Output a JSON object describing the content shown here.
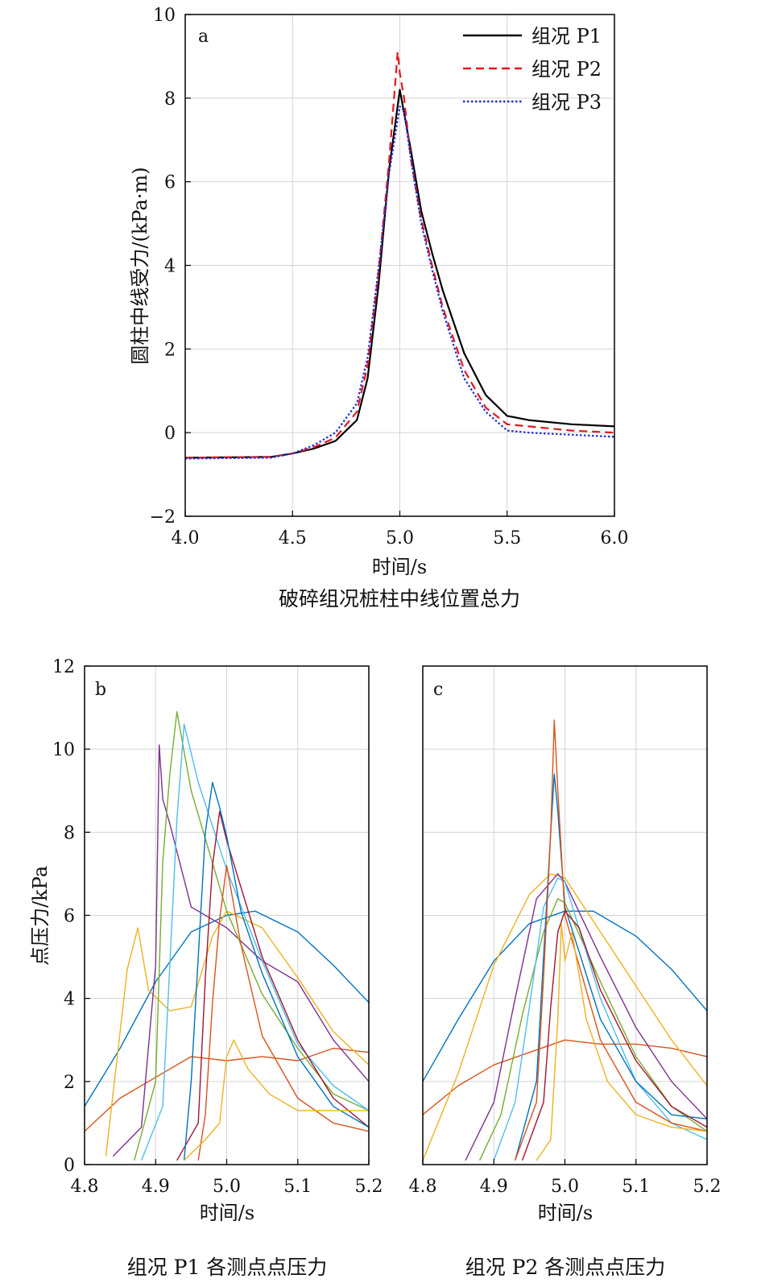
{
  "chart_data": [
    {
      "panel": "a",
      "type": "line",
      "caption": "破碎组况桩柱中线位置总力",
      "xlabel": "时间/s",
      "ylabel": "圆柱中线受力/(kPa·m)",
      "xlim": [
        4.0,
        6.0
      ],
      "ylim": [
        -2,
        10
      ],
      "xticks": [
        "4.0",
        "4.5",
        "5.0",
        "5.5",
        "6.0"
      ],
      "yticks": [
        "−2",
        "0",
        "2",
        "4",
        "6",
        "8",
        "10"
      ],
      "grid": true,
      "legend": "top-right",
      "series": [
        {
          "name": "组况 P1",
          "color": "#000000",
          "dash": "solid",
          "x": [
            4.0,
            4.4,
            4.5,
            4.6,
            4.7,
            4.8,
            4.85,
            4.9,
            4.95,
            5.0,
            5.05,
            5.1,
            5.15,
            5.2,
            5.3,
            5.4,
            5.5,
            5.6,
            5.8,
            6.0
          ],
          "y": [
            -0.6,
            -0.58,
            -0.5,
            -0.38,
            -0.2,
            0.3,
            1.3,
            3.5,
            6.3,
            8.2,
            6.8,
            5.3,
            4.3,
            3.4,
            1.9,
            0.9,
            0.4,
            0.3,
            0.2,
            0.15
          ]
        },
        {
          "name": "组况 P2",
          "color": "#e0191e",
          "dash": "dashed",
          "x": [
            4.0,
            4.4,
            4.5,
            4.6,
            4.7,
            4.8,
            4.85,
            4.9,
            4.95,
            4.99,
            5.0,
            5.02,
            5.05,
            5.1,
            5.15,
            5.2,
            5.3,
            5.4,
            5.5,
            5.6,
            5.8,
            6.0
          ],
          "y": [
            -0.6,
            -0.58,
            -0.5,
            -0.35,
            -0.12,
            0.5,
            1.6,
            3.8,
            6.5,
            9.1,
            8.6,
            8.0,
            6.6,
            5.1,
            4.0,
            3.0,
            1.5,
            0.6,
            0.2,
            0.15,
            0.05,
            0.0
          ]
        },
        {
          "name": "组况 P3",
          "color": "#1f2fd4",
          "dash": "dotted",
          "x": [
            4.0,
            4.4,
            4.5,
            4.6,
            4.7,
            4.8,
            4.85,
            4.9,
            4.95,
            5.0,
            5.02,
            5.05,
            5.1,
            5.15,
            5.2,
            5.3,
            5.4,
            5.5,
            5.6,
            5.8,
            6.0
          ],
          "y": [
            -0.62,
            -0.6,
            -0.5,
            -0.3,
            0.0,
            0.7,
            1.8,
            3.9,
            6.2,
            7.8,
            7.7,
            6.6,
            5.0,
            3.9,
            2.9,
            1.3,
            0.5,
            0.05,
            0.0,
            -0.05,
            -0.1
          ]
        }
      ]
    },
    {
      "panel": "b",
      "type": "line",
      "caption": "组况 P1 各测点点压力",
      "xlabel": "时间/s",
      "ylabel": "点压力/kPa",
      "xlim": [
        4.8,
        5.2
      ],
      "ylim": [
        0,
        12
      ],
      "xticks": [
        "4.8",
        "4.9",
        "5.0",
        "5.1",
        "5.2"
      ],
      "yticks": [
        "0",
        "2",
        "4",
        "6",
        "8",
        "10",
        "12"
      ],
      "grid": true,
      "series": [
        {
          "color": "#0072bd",
          "x": [
            4.8,
            4.85,
            4.9,
            4.95,
            5.0,
            5.04,
            5.1,
            5.15,
            5.2
          ],
          "y": [
            1.4,
            2.8,
            4.4,
            5.6,
            6.0,
            6.1,
            5.6,
            4.8,
            3.9
          ]
        },
        {
          "color": "#d95319",
          "x": [
            4.8,
            4.85,
            4.9,
            4.95,
            5.0,
            5.05,
            5.1,
            5.15,
            5.2
          ],
          "y": [
            0.8,
            1.6,
            2.1,
            2.6,
            2.5,
            2.6,
            2.5,
            2.8,
            2.7
          ]
        },
        {
          "color": "#edb120",
          "x": [
            4.83,
            4.86,
            4.875,
            4.89,
            4.92,
            4.95,
            4.98,
            5.0,
            5.05,
            5.1,
            5.15,
            5.2
          ],
          "y": [
            0.2,
            4.7,
            5.7,
            4.2,
            3.7,
            3.8,
            5.5,
            6.1,
            5.7,
            4.5,
            3.2,
            2.4
          ]
        },
        {
          "color": "#7e2f8e",
          "x": [
            4.84,
            4.88,
            4.9,
            4.905,
            4.91,
            4.92,
            4.95,
            5.0,
            5.05,
            5.1,
            5.15,
            5.2
          ],
          "y": [
            0.2,
            0.9,
            4.8,
            10.1,
            8.8,
            8.2,
            6.2,
            5.7,
            4.9,
            4.4,
            3.0,
            2.0
          ]
        },
        {
          "color": "#77ac30",
          "x": [
            4.87,
            4.9,
            4.91,
            4.92,
            4.93,
            4.95,
            5.0,
            5.05,
            5.1,
            5.15,
            5.2
          ],
          "y": [
            0.1,
            2.0,
            7.3,
            9.4,
            10.9,
            9.0,
            6.1,
            4.1,
            2.8,
            1.7,
            1.3
          ]
        },
        {
          "color": "#4dbeee",
          "x": [
            4.88,
            4.91,
            4.92,
            4.93,
            4.94,
            4.96,
            5.0,
            5.05,
            5.1,
            5.15,
            5.2
          ],
          "y": [
            0.1,
            1.4,
            4.8,
            8.3,
            10.6,
            9.2,
            7.1,
            4.9,
            2.9,
            1.9,
            1.3
          ]
        },
        {
          "color": "#a2142f",
          "x": [
            4.93,
            4.96,
            4.97,
            4.98,
            4.99,
            5.0,
            5.05,
            5.1,
            5.15,
            5.2
          ],
          "y": [
            0.1,
            1.0,
            4.5,
            7.2,
            8.5,
            7.8,
            5.0,
            3.0,
            1.6,
            0.9
          ]
        },
        {
          "color": "#0072bd",
          "x": [
            4.94,
            4.95,
            4.96,
            4.97,
            4.98,
            4.99,
            5.0,
            5.02,
            5.05,
            5.1,
            5.15,
            5.2
          ],
          "y": [
            0.1,
            2.0,
            5.0,
            8.0,
            9.2,
            8.6,
            7.9,
            6.1,
            4.6,
            2.6,
            1.4,
            0.9
          ]
        },
        {
          "color": "#d95319",
          "x": [
            4.96,
            4.97,
            4.98,
            4.99,
            5.0,
            5.02,
            5.05,
            5.1,
            5.15,
            5.2
          ],
          "y": [
            0.1,
            1.2,
            3.9,
            5.9,
            7.2,
            5.3,
            3.1,
            1.6,
            1.0,
            0.8
          ]
        },
        {
          "color": "#edb120",
          "x": [
            4.94,
            4.97,
            4.99,
            5.0,
            5.01,
            5.03,
            5.06,
            5.1,
            5.15,
            5.2
          ],
          "y": [
            0.1,
            0.6,
            1.0,
            2.6,
            3.0,
            2.3,
            1.7,
            1.3,
            1.3,
            1.3
          ]
        }
      ]
    },
    {
      "panel": "c",
      "type": "line",
      "caption": "组况 P2 各测点点压力",
      "xlabel": "时间/s",
      "xlim": [
        4.8,
        5.2
      ],
      "ylim": [
        0,
        12
      ],
      "xticks": [
        "4.8",
        "4.9",
        "5.0",
        "5.1",
        "5.2"
      ],
      "grid": true,
      "series": [
        {
          "color": "#0072bd",
          "x": [
            4.8,
            4.85,
            4.9,
            4.95,
            5.0,
            5.04,
            5.1,
            5.15,
            5.2
          ],
          "y": [
            2.0,
            3.5,
            4.9,
            5.8,
            6.1,
            6.1,
            5.5,
            4.7,
            3.7
          ]
        },
        {
          "color": "#d95319",
          "x": [
            4.8,
            4.85,
            4.9,
            4.95,
            5.0,
            5.05,
            5.1,
            5.15,
            5.2
          ],
          "y": [
            1.2,
            1.9,
            2.4,
            2.7,
            3.0,
            2.9,
            2.9,
            2.8,
            2.6
          ]
        },
        {
          "color": "#edb120",
          "x": [
            4.8,
            4.85,
            4.9,
            4.95,
            4.98,
            5.0,
            5.05,
            5.1,
            5.15,
            5.2
          ],
          "y": [
            0.1,
            2.2,
            4.8,
            6.5,
            7.0,
            6.9,
            5.6,
            4.3,
            3.0,
            1.9
          ]
        },
        {
          "color": "#7e2f8e",
          "x": [
            4.86,
            4.9,
            4.93,
            4.96,
            4.99,
            5.0,
            5.05,
            5.1,
            5.15,
            5.2
          ],
          "y": [
            0.1,
            1.5,
            4.0,
            6.4,
            7.0,
            6.8,
            5.0,
            3.3,
            2.0,
            1.1
          ]
        },
        {
          "color": "#77ac30",
          "x": [
            4.88,
            4.91,
            4.94,
            4.97,
            4.99,
            5.0,
            5.05,
            5.1,
            5.15,
            5.2
          ],
          "y": [
            0.1,
            1.2,
            3.6,
            5.6,
            6.4,
            6.3,
            4.4,
            2.6,
            1.4,
            0.8
          ]
        },
        {
          "color": "#4dbeee",
          "x": [
            4.9,
            4.93,
            4.95,
            4.97,
            4.99,
            5.0,
            5.05,
            5.1,
            5.15,
            5.2
          ],
          "y": [
            0.1,
            1.5,
            3.8,
            6.2,
            6.9,
            6.8,
            4.0,
            2.0,
            1.0,
            0.6
          ]
        },
        {
          "color": "#0072bd",
          "x": [
            4.93,
            4.96,
            4.97,
            4.98,
            4.985,
            4.99,
            5.0,
            5.05,
            5.1,
            5.15,
            5.2
          ],
          "y": [
            0.1,
            2.0,
            5.0,
            8.0,
            9.4,
            8.5,
            6.2,
            3.5,
            2.0,
            1.2,
            1.1
          ]
        },
        {
          "color": "#d95319",
          "x": [
            4.93,
            4.96,
            4.97,
            4.98,
            4.985,
            4.99,
            5.0,
            5.05,
            5.1,
            5.15,
            5.2
          ],
          "y": [
            0.1,
            1.5,
            4.5,
            8.0,
            10.7,
            9.0,
            6.0,
            3.0,
            1.5,
            1.0,
            0.8
          ]
        },
        {
          "color": "#a2142f",
          "x": [
            4.94,
            4.97,
            4.98,
            4.99,
            5.0,
            5.02,
            5.05,
            5.1,
            5.15,
            5.2
          ],
          "y": [
            0.1,
            1.5,
            3.8,
            5.6,
            6.1,
            5.7,
            4.2,
            2.5,
            1.4,
            0.9
          ]
        },
        {
          "color": "#edb120",
          "x": [
            4.96,
            4.98,
            4.99,
            4.995,
            5.0,
            5.01,
            5.03,
            5.06,
            5.1,
            5.15,
            5.2
          ],
          "y": [
            0.1,
            0.6,
            3.5,
            5.8,
            4.9,
            5.6,
            3.5,
            2.0,
            1.2,
            0.9,
            0.8
          ]
        }
      ]
    }
  ],
  "panels": {
    "a": {
      "letter": "a"
    },
    "b": {
      "letter": "b"
    },
    "c": {
      "letter": "c"
    }
  }
}
